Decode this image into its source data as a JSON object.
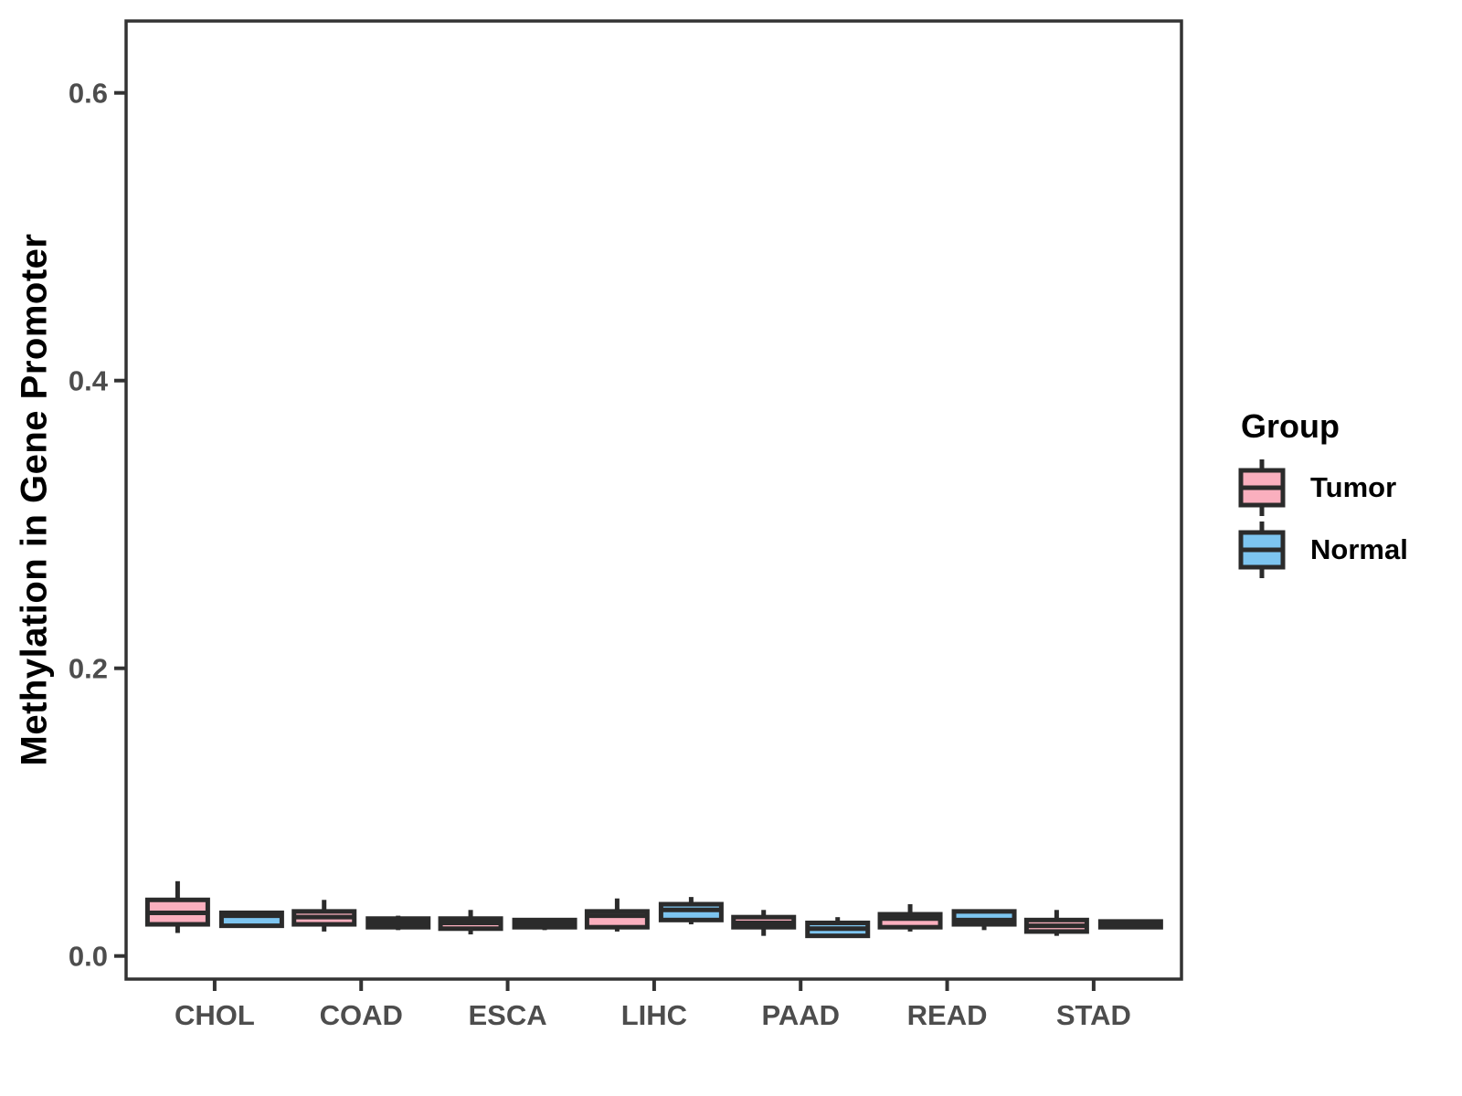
{
  "chart_data": {
    "type": "boxplot",
    "title": "",
    "xlabel": "",
    "ylabel": "Methylation in Gene Promoter",
    "ylim": [
      0.0,
      0.65
    ],
    "yticks": [
      0.0,
      0.2,
      0.4,
      0.6
    ],
    "ytick_labels": [
      "0.0",
      "0.2",
      "0.4",
      "0.6"
    ],
    "grid": false,
    "categories": [
      "CHOL",
      "COAD",
      "ESCA",
      "LIHC",
      "PAAD",
      "READ",
      "STAD"
    ],
    "groups": [
      {
        "name": "Tumor",
        "color": "#FAAFBE"
      },
      {
        "name": "Normal",
        "color": "#7DC5F0"
      }
    ],
    "legend": {
      "title": "Group",
      "position": "right"
    },
    "series": [
      {
        "name": "Tumor",
        "color": "#FAAFBE",
        "boxes": [
          {
            "category": "CHOL",
            "min": 0.016,
            "q1": 0.022,
            "median": 0.03,
            "q3": 0.039,
            "max": 0.052
          },
          {
            "category": "COAD",
            "min": 0.017,
            "q1": 0.022,
            "median": 0.027,
            "q3": 0.031,
            "max": 0.039
          },
          {
            "category": "ESCA",
            "min": 0.015,
            "q1": 0.019,
            "median": 0.023,
            "q3": 0.026,
            "max": 0.032
          },
          {
            "category": "LIHC",
            "min": 0.017,
            "q1": 0.02,
            "median": 0.028,
            "q3": 0.031,
            "max": 0.04
          },
          {
            "category": "PAAD",
            "min": 0.014,
            "q1": 0.02,
            "median": 0.023,
            "q3": 0.027,
            "max": 0.032
          },
          {
            "category": "READ",
            "min": 0.017,
            "q1": 0.02,
            "median": 0.026,
            "q3": 0.029,
            "max": 0.036
          },
          {
            "category": "STAD",
            "min": 0.014,
            "q1": 0.017,
            "median": 0.021,
            "q3": 0.025,
            "max": 0.032
          }
        ]
      },
      {
        "name": "Normal",
        "color": "#7DC5F0",
        "boxes": [
          {
            "category": "CHOL",
            "min": 0.02,
            "q1": 0.021,
            "median": 0.028,
            "q3": 0.03,
            "max": 0.031
          },
          {
            "category": "COAD",
            "min": 0.018,
            "q1": 0.02,
            "median": 0.023,
            "q3": 0.026,
            "max": 0.028
          },
          {
            "category": "ESCA",
            "min": 0.018,
            "q1": 0.02,
            "median": 0.022,
            "q3": 0.025,
            "max": 0.026
          },
          {
            "category": "LIHC",
            "min": 0.022,
            "q1": 0.025,
            "median": 0.032,
            "q3": 0.036,
            "max": 0.041
          },
          {
            "category": "PAAD",
            "min": 0.013,
            "q1": 0.014,
            "median": 0.019,
            "q3": 0.023,
            "max": 0.027
          },
          {
            "category": "READ",
            "min": 0.018,
            "q1": 0.022,
            "median": 0.025,
            "q3": 0.031,
            "max": 0.032
          },
          {
            "category": "STAD",
            "min": 0.019,
            "q1": 0.02,
            "median": 0.022,
            "q3": 0.024,
            "max": 0.025
          }
        ]
      }
    ],
    "style": {
      "box_border_color": "#2b2b2b",
      "panel_border_color": "#333333",
      "tick_label_color": "#4d4d4d",
      "axis_title_color": "#000000",
      "background": "#ffffff"
    }
  }
}
